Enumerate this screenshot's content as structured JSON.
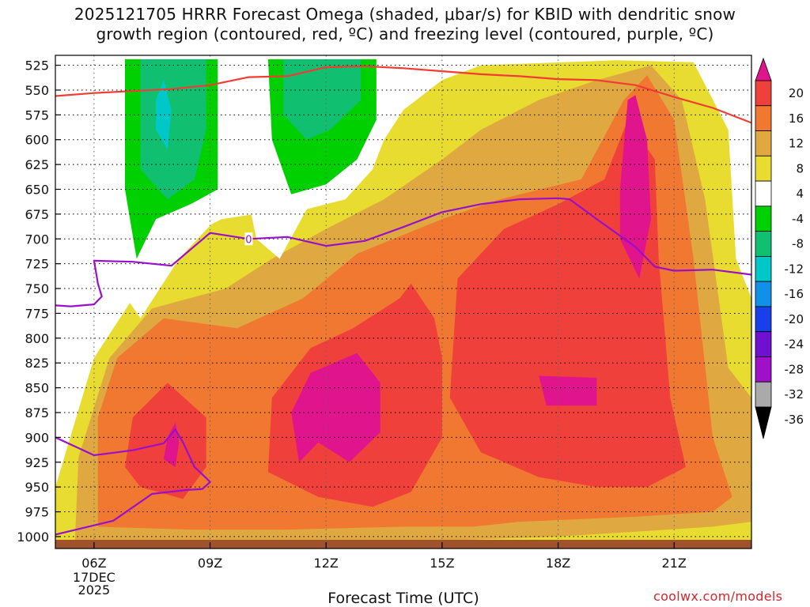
{
  "chart_data": {
    "type": "contour",
    "title_line1": "2025121705 HRRR Forecast Omega (shaded, μbar/s) for KBID with dendritic snow",
    "title_line2": "growth region (contoured, red, ºC) and freezing level (contoured, purple, ºC)",
    "xlabel": "Forecast Time (UTC)",
    "x_tick_labels": [
      "06Z",
      "09Z",
      "12Z",
      "15Z",
      "18Z",
      "21Z"
    ],
    "x_ticks_hours": [
      6,
      9,
      12,
      15,
      18,
      21
    ],
    "x_range_hours": [
      5.0,
      23.0
    ],
    "date_label": [
      "17DEC",
      "2025"
    ],
    "y_tick_labels": [
      525,
      550,
      575,
      600,
      625,
      650,
      675,
      700,
      725,
      750,
      775,
      800,
      825,
      850,
      875,
      900,
      925,
      950,
      975,
      1000
    ],
    "y_range_hpa": [
      515,
      1012
    ],
    "colorbar": {
      "levels": [
        20,
        16,
        12,
        8,
        4,
        -4,
        -8,
        -12,
        -16,
        -20,
        -24,
        -28,
        -32,
        -36
      ],
      "colors": [
        "#e0148c",
        "#f0403c",
        "#f07830",
        "#e0a840",
        "#e8dc30",
        "#ffffff",
        "#00d000",
        "#10c070",
        "#00c8c8",
        "#1090e8",
        "#1840e8",
        "#7010d0",
        "#a010c8",
        "#aaaaaa"
      ]
    },
    "omega_regions": [
      {
        "value_range": "4 to 8",
        "color": "#e8dc30",
        "pts": [
          [
            5.0,
            1012
          ],
          [
            5.0,
            950
          ],
          [
            6.0,
            820
          ],
          [
            7.0,
            760
          ],
          [
            8.3,
            700
          ],
          [
            9.3,
            680
          ],
          [
            11.0,
            670
          ],
          [
            12.5,
            640
          ],
          [
            13.5,
            600
          ],
          [
            14.0,
            570
          ],
          [
            15.0,
            540
          ],
          [
            16.0,
            525
          ],
          [
            19.5,
            520
          ],
          [
            21.5,
            522
          ],
          [
            22.4,
            590
          ],
          [
            22.6,
            720
          ],
          [
            23.0,
            760
          ],
          [
            23.0,
            1012
          ]
        ]
      },
      {
        "value_range": "8 to 12",
        "color": "#e0a840",
        "pts": [
          [
            5.5,
            1012
          ],
          [
            5.6,
            920
          ],
          [
            6.4,
            820
          ],
          [
            7.5,
            770
          ],
          [
            9.4,
            750
          ],
          [
            10.6,
            720
          ],
          [
            12.0,
            690
          ],
          [
            13.5,
            660
          ],
          [
            15.0,
            620
          ],
          [
            16.0,
            590
          ],
          [
            17.5,
            560
          ],
          [
            19.0,
            540
          ],
          [
            20.4,
            525
          ],
          [
            21.2,
            560
          ],
          [
            21.8,
            660
          ],
          [
            22.4,
            830
          ],
          [
            23.0,
            860
          ],
          [
            23.0,
            985
          ],
          [
            22.0,
            990
          ],
          [
            20.0,
            995
          ],
          [
            18.0,
            1000
          ],
          [
            15.8,
            1003
          ],
          [
            12.0,
            1006
          ],
          [
            9.0,
            1006
          ],
          [
            6.0,
            1008
          ]
        ]
      },
      {
        "value_range": "12 to 16",
        "color": "#f07830",
        "pts": [
          [
            6.1,
            990
          ],
          [
            6.1,
            880
          ],
          [
            6.6,
            820
          ],
          [
            7.8,
            780
          ],
          [
            9.7,
            790
          ],
          [
            11.4,
            760
          ],
          [
            12.8,
            715
          ],
          [
            15.0,
            680
          ],
          [
            16.5,
            660
          ],
          [
            18.6,
            640
          ],
          [
            19.7,
            560
          ],
          [
            20.3,
            535
          ],
          [
            21.0,
            580
          ],
          [
            21.5,
            720
          ],
          [
            22.0,
            900
          ],
          [
            22.5,
            960
          ],
          [
            22.0,
            975
          ],
          [
            20.0,
            980
          ],
          [
            17.0,
            985
          ],
          [
            15.8,
            990
          ],
          [
            14.0,
            990
          ],
          [
            11.0,
            993
          ],
          [
            8.5,
            993
          ]
        ]
      },
      {
        "value_range": "16 to 20",
        "color": "#f0403c",
        "pts": [
          [
            6.8,
            930
          ],
          [
            7.0,
            880
          ],
          [
            7.9,
            845
          ],
          [
            8.9,
            880
          ],
          [
            8.9,
            930
          ],
          [
            8.3,
            962
          ],
          [
            7.2,
            950
          ]
        ]
      },
      {
        "value_range": "16 to 20",
        "color": "#f0403c",
        "pts": [
          [
            10.5,
            935
          ],
          [
            10.6,
            860
          ],
          [
            11.6,
            810
          ],
          [
            12.7,
            790
          ],
          [
            13.9,
            760
          ],
          [
            14.2,
            745
          ],
          [
            14.8,
            780
          ],
          [
            15.0,
            820
          ],
          [
            15.0,
            900
          ],
          [
            14.2,
            955
          ],
          [
            13.2,
            970
          ],
          [
            11.8,
            960
          ]
        ]
      },
      {
        "value_range": "16 to 20",
        "color": "#f0403c",
        "pts": [
          [
            15.2,
            860
          ],
          [
            15.4,
            740
          ],
          [
            16.6,
            690
          ],
          [
            18.0,
            665
          ],
          [
            19.2,
            640
          ],
          [
            19.8,
            580
          ],
          [
            20.5,
            620
          ],
          [
            20.6,
            720
          ],
          [
            20.9,
            860
          ],
          [
            21.3,
            930
          ],
          [
            20.3,
            950
          ],
          [
            19.0,
            950
          ],
          [
            17.5,
            940
          ],
          [
            16.0,
            915
          ]
        ]
      },
      {
        "value_range": "> 20",
        "color": "#e0148c",
        "pts": [
          [
            7.9,
            900
          ],
          [
            8.1,
            885
          ],
          [
            8.2,
            905
          ],
          [
            8.1,
            930
          ],
          [
            7.8,
            922
          ]
        ]
      },
      {
        "value_range": "> 20",
        "color": "#e0148c",
        "pts": [
          [
            11.1,
            875
          ],
          [
            11.6,
            835
          ],
          [
            12.8,
            815
          ],
          [
            13.4,
            845
          ],
          [
            13.4,
            895
          ],
          [
            12.6,
            925
          ],
          [
            11.8,
            905
          ],
          [
            11.3,
            925
          ]
        ]
      },
      {
        "value_range": "> 20",
        "color": "#e0148c",
        "pts": [
          [
            17.5,
            838
          ],
          [
            19.0,
            840
          ],
          [
            19.0,
            868
          ],
          [
            17.7,
            868
          ]
        ]
      },
      {
        "value_range": "> 20",
        "color": "#e0148c",
        "pts": [
          [
            19.6,
            650
          ],
          [
            19.8,
            560
          ],
          [
            20.0,
            555
          ],
          [
            20.3,
            600
          ],
          [
            20.4,
            680
          ],
          [
            20.1,
            740
          ],
          [
            19.6,
            700
          ]
        ]
      },
      {
        "value_range": "-4 to 4",
        "color": "#ffffff",
        "pts": [
          [
            6.5,
            525
          ],
          [
            6.5,
            740
          ],
          [
            7.2,
            780
          ],
          [
            8.2,
            720
          ],
          [
            9.4,
            670
          ],
          [
            9.9,
            645
          ],
          [
            10.2,
            700
          ],
          [
            10.8,
            720
          ],
          [
            11.5,
            670
          ],
          [
            12.5,
            660
          ],
          [
            13.2,
            630
          ],
          [
            13.9,
            560
          ],
          [
            13.0,
            540
          ],
          [
            9.0,
            540
          ],
          [
            7.5,
            530
          ]
        ]
      },
      {
        "value_range": "-8 to -4",
        "color": "#00d000",
        "pts": [
          [
            6.8,
            519
          ],
          [
            6.8,
            650
          ],
          [
            7.1,
            720
          ],
          [
            7.6,
            680
          ],
          [
            8.5,
            665
          ],
          [
            9.2,
            650
          ],
          [
            9.2,
            519
          ]
        ]
      },
      {
        "value_range": "-8 to -4",
        "color": "#00d000",
        "pts": [
          [
            10.5,
            519
          ],
          [
            10.6,
            600
          ],
          [
            11.1,
            655
          ],
          [
            12.0,
            645
          ],
          [
            12.8,
            620
          ],
          [
            13.3,
            580
          ],
          [
            13.3,
            519
          ]
        ]
      },
      {
        "value_range": "-12 to -8",
        "color": "#10c070",
        "pts": [
          [
            7.2,
            519
          ],
          [
            7.2,
            630
          ],
          [
            7.9,
            660
          ],
          [
            8.6,
            640
          ],
          [
            8.9,
            590
          ],
          [
            8.9,
            519
          ]
        ]
      },
      {
        "value_range": "-12 to -8",
        "color": "#10c070",
        "pts": [
          [
            10.9,
            519
          ],
          [
            10.9,
            575
          ],
          [
            11.5,
            600
          ],
          [
            12.1,
            590
          ],
          [
            12.9,
            560
          ],
          [
            12.9,
            519
          ]
        ]
      },
      {
        "value_range": "-16 to -12",
        "color": "#00c8c8",
        "pts": [
          [
            7.6,
            560
          ],
          [
            7.8,
            540
          ],
          [
            8.0,
            570
          ],
          [
            7.9,
            610
          ],
          [
            7.6,
            590
          ]
        ]
      }
    ],
    "dendritic_growth_contour_red": {
      "hours": [
        5.0,
        6.0,
        7.0,
        8.0,
        9.0,
        10.0,
        11.0,
        12.0,
        13.0,
        14.0,
        15.0,
        16.0,
        17.0,
        18.0,
        19.0,
        20.0,
        21.0,
        22.0,
        23.0
      ],
      "hpa": [
        556,
        553,
        551,
        549,
        545,
        537,
        536,
        527,
        526,
        528,
        531,
        534,
        536,
        539,
        540,
        545,
        557,
        568,
        583
      ]
    },
    "freezing_level_contour_purple": [
      {
        "label": "0",
        "hours": [
          5.0,
          5.4,
          6.0,
          6.2,
          6.1,
          6.0,
          7.0,
          8.0,
          9.0,
          10.0,
          11.0,
          12.0,
          13.0,
          14.0,
          15.0,
          16.0,
          17.0,
          18.0,
          18.3,
          19.0,
          20.0,
          20.5,
          21.0,
          22.0,
          23.0
        ],
        "hpa": [
          767,
          768,
          766,
          758,
          745,
          722,
          723,
          727,
          694,
          700,
          698,
          707,
          702,
          688,
          673,
          665,
          660,
          659,
          660,
          680,
          708,
          728,
          732,
          731,
          736
        ]
      },
      {
        "label": "0",
        "hours": [
          5.0,
          6.0,
          7.0,
          7.8,
          8.1,
          8.3,
          8.6,
          8.9,
          9.0,
          8.8,
          8.4,
          7.5,
          6.5,
          5.0
        ],
        "hpa": [
          900,
          918,
          913,
          906,
          892,
          905,
          930,
          941,
          945,
          952,
          953,
          957,
          984,
          998
        ]
      }
    ]
  }
}
